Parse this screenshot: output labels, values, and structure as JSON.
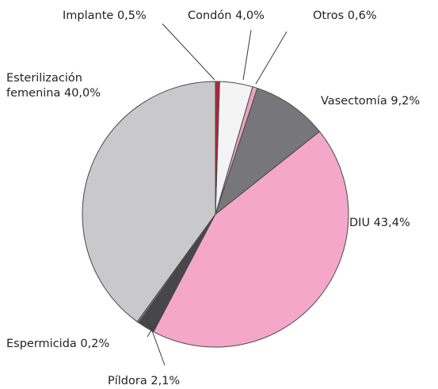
{
  "chart_data": {
    "type": "pie",
    "categories": [
      "Implante",
      "Condón",
      "Otros",
      "Vasectomía",
      "DIU",
      "Píldora",
      "Espermicida",
      "Esterilización femenina"
    ],
    "values": [
      0.5,
      4.0,
      0.6,
      9.2,
      43.4,
      2.1,
      0.2,
      40.0
    ],
    "value_labels": [
      "0,5%",
      "4,0%",
      "0,6%",
      "9,2%",
      "43,4%",
      "2,1%",
      "0,2%",
      "40,0%"
    ],
    "colors": [
      "#b3263a",
      "#f4f3f4",
      "#e7a3bd",
      "#77777b",
      "#f4a7c9",
      "#47474b",
      "#8f8f93",
      "#c9c9cb"
    ]
  }
}
